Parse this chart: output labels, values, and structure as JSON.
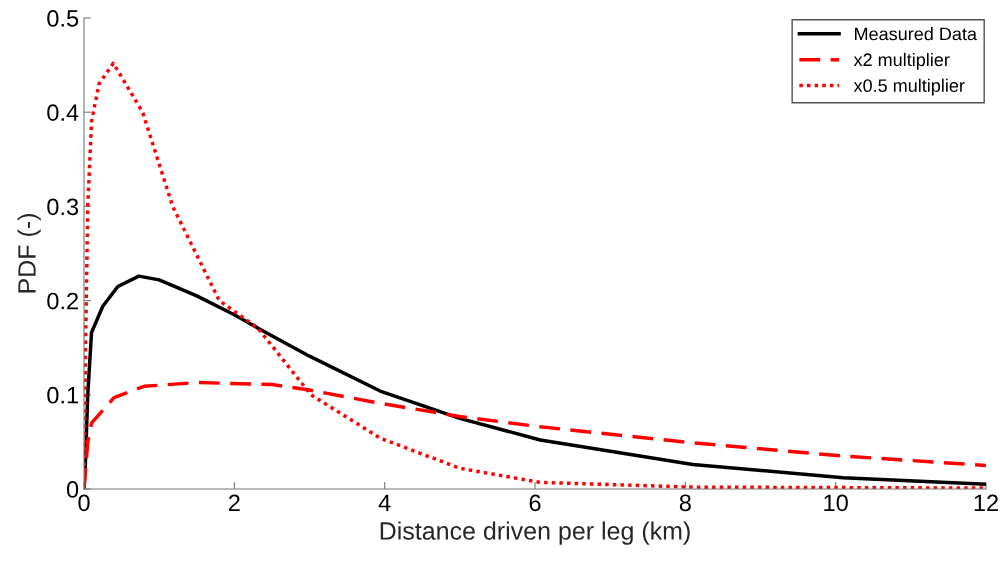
{
  "chart_data": {
    "type": "line",
    "xlabel": "Distance driven per leg (km)",
    "ylabel": "PDF (-)",
    "xlim": [
      0,
      12
    ],
    "ylim": [
      0,
      0.5
    ],
    "xticks": [
      0,
      2,
      4,
      6,
      8,
      10,
      12
    ],
    "yticks": [
      0,
      0.1,
      0.2,
      0.3,
      0.4,
      0.5
    ],
    "grid": false,
    "legend": "top right",
    "marker": "none",
    "series": [
      {
        "name": "Measured Data",
        "color": "#000000",
        "line_style": "solid",
        "x": [
          0,
          0.02,
          0.05,
          0.1,
          0.25,
          0.45,
          0.73,
          1,
          1.5,
          2,
          2.31,
          3,
          3.94,
          5,
          6.07,
          8.1,
          10.1,
          12
        ],
        "values": [
          0,
          0.03,
          0.1,
          0.166,
          0.194,
          0.215,
          0.226,
          0.222,
          0.205,
          0.185,
          0.171,
          0.141,
          0.104,
          0.075,
          0.052,
          0.026,
          0.012,
          0.005
        ]
      },
      {
        "name": "x2 multiplier",
        "color": "#ff0000",
        "line_style": "dashed",
        "x": [
          0,
          0.05,
          0.1,
          0.4,
          0.8,
          1.5,
          2.5,
          3,
          3.94,
          5,
          6.07,
          8.1,
          10.1,
          12
        ],
        "values": [
          0,
          0.05,
          0.07,
          0.097,
          0.109,
          0.113,
          0.111,
          0.105,
          0.091,
          0.077,
          0.066,
          0.049,
          0.035,
          0.025
        ]
      },
      {
        "name": "x0.5 multiplier",
        "color": "#ff0000",
        "line_style": "dotted",
        "x": [
          0,
          0.02,
          0.05,
          0.1,
          0.2,
          0.39,
          0.78,
          1.18,
          1.8,
          2.31,
          3.02,
          3.94,
          5,
          6.07,
          8.1,
          12
        ],
        "values": [
          0,
          0.15,
          0.3,
          0.39,
          0.43,
          0.452,
          0.4,
          0.3,
          0.2,
          0.171,
          0.1,
          0.054,
          0.022,
          0.007,
          0.002,
          0.001
        ]
      }
    ]
  }
}
